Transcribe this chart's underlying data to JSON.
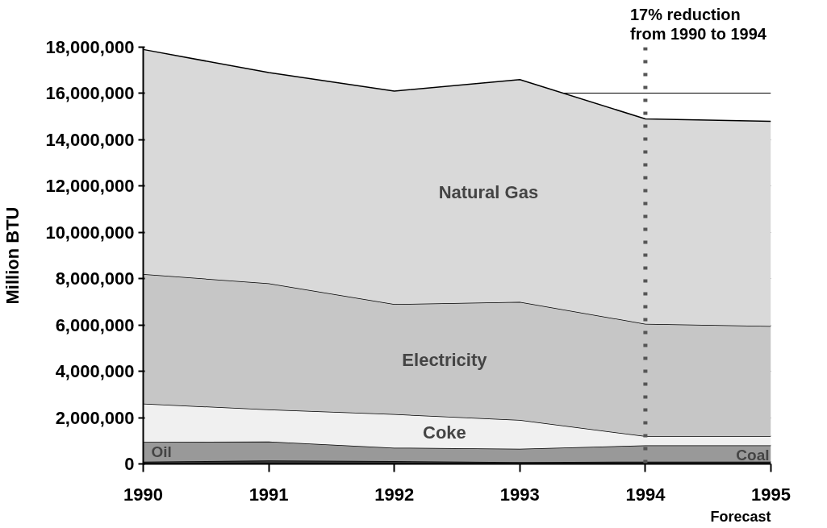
{
  "chart_data": {
    "type": "area",
    "stacked": true,
    "ylabel": "Million BTU",
    "x": [
      1990,
      1991,
      1992,
      1993,
      1994,
      1995
    ],
    "xlim": [
      1990,
      1995
    ],
    "xticks": [
      1990,
      1991,
      1992,
      1993,
      1994,
      1995
    ],
    "ylim": [
      0,
      18000000
    ],
    "yticks": [
      {
        "value": 0,
        "label": "0"
      },
      {
        "value": 2000000,
        "label": "2,000,000"
      },
      {
        "value": 4000000,
        "label": "4,000,000"
      },
      {
        "value": 6000000,
        "label": "6,000,000"
      },
      {
        "value": 8000000,
        "label": "8,000,000"
      },
      {
        "value": 10000000,
        "label": "10,000,000"
      },
      {
        "value": 12000000,
        "label": "12,000,000"
      },
      {
        "value": 14000000,
        "label": "14,000,000"
      },
      {
        "value": 16000000,
        "label": "16,000,000"
      },
      {
        "value": 18000000,
        "label": "18,000,000"
      }
    ],
    "grid": "y",
    "series": [
      {
        "name": "Coal",
        "color": "#333333",
        "values": [
          100000,
          150000,
          120000,
          80000,
          100000,
          100000
        ]
      },
      {
        "name": "Oil",
        "color": "#999999",
        "values": [
          850000,
          820000,
          580000,
          570000,
          700000,
          700000
        ]
      },
      {
        "name": "Coke",
        "color": "#f0f0f0",
        "values": [
          1650000,
          1380000,
          1450000,
          1250000,
          400000,
          400000
        ]
      },
      {
        "name": "Electricity",
        "color": "#c6c6c6",
        "values": [
          5600000,
          5450000,
          4750000,
          5100000,
          4850000,
          4750000
        ]
      },
      {
        "name": "Natural Gas",
        "color": "#d9d9d9",
        "values": [
          9700000,
          9100000,
          9200000,
          9600000,
          8850000,
          8850000
        ]
      }
    ],
    "ref_lines": [
      {
        "axis": "x",
        "value": 1994,
        "label": "17% reduction\nfrom 1990 to  1994",
        "color": "#555555",
        "line_style": "dotted"
      }
    ],
    "annotations": [
      "Forecast"
    ]
  }
}
